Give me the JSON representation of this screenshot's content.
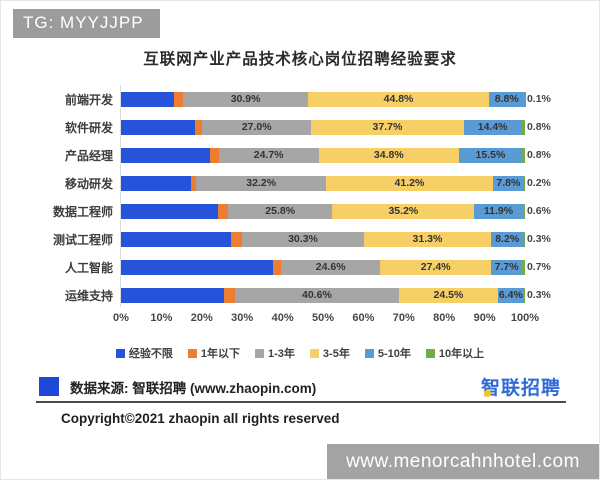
{
  "badge": {
    "text": "TG: MYYJJPP"
  },
  "watermark": {
    "text": "www.menorcahnhotel.com"
  },
  "footer": {
    "source_text": "数据来源: 智联招聘 (www.zhaopin.com)",
    "logo_text": "智联招聘",
    "copyright": "Copyright©2021 zhaopin all rights reserved"
  },
  "chart_data": {
    "type": "bar",
    "orientation": "horizontal-stacked",
    "title": "互联网产业产品技术核心岗位招聘经验要求",
    "categories": [
      "前端开发",
      "软件研发",
      "产品经理",
      "移动研发",
      "数据工程师",
      "测试工程师",
      "人工智能",
      "运维支持"
    ],
    "xlim": [
      0,
      100
    ],
    "x_ticks": [
      "0%",
      "10%",
      "20%",
      "30%",
      "40%",
      "50%",
      "60%",
      "70%",
      "80%",
      "90%",
      "100%"
    ],
    "legend_position": "bottom",
    "grid": false,
    "series": [
      {
        "name": "经验不限",
        "color": "#2653d9",
        "values": [
          13.2,
          18.3,
          22.0,
          17.4,
          24.0,
          27.3,
          37.7,
          25.6
        ],
        "labels_shown": false,
        "values_estimated": true
      },
      {
        "name": "1年以下",
        "color": "#ed7d31",
        "values": [
          2.2,
          1.8,
          2.2,
          1.2,
          2.5,
          2.6,
          1.9,
          2.6
        ],
        "labels_shown": false,
        "values_estimated": true
      },
      {
        "name": "1-3年",
        "color": "#a6a6a6",
        "values": [
          30.9,
          27.0,
          24.7,
          32.2,
          25.8,
          30.3,
          24.6,
          40.6
        ],
        "labels_shown": true
      },
      {
        "name": "3-5年",
        "color": "#f7cf67",
        "values": [
          44.8,
          37.7,
          34.8,
          41.2,
          35.2,
          31.3,
          27.4,
          24.5
        ],
        "labels_shown": true
      },
      {
        "name": "5-10年",
        "color": "#5b9bd5",
        "values": [
          8.8,
          14.4,
          15.5,
          7.8,
          11.9,
          8.2,
          7.7,
          6.4
        ],
        "labels_shown": true
      },
      {
        "name": "10年以上",
        "color": "#70ad47",
        "values": [
          0.1,
          0.8,
          0.8,
          0.2,
          0.6,
          0.3,
          0.7,
          0.3
        ],
        "labels_shown": true,
        "label_position": "outside"
      }
    ],
    "estimation_note": "first two series are unlabeled in the source image; values estimated from bar lengths"
  }
}
